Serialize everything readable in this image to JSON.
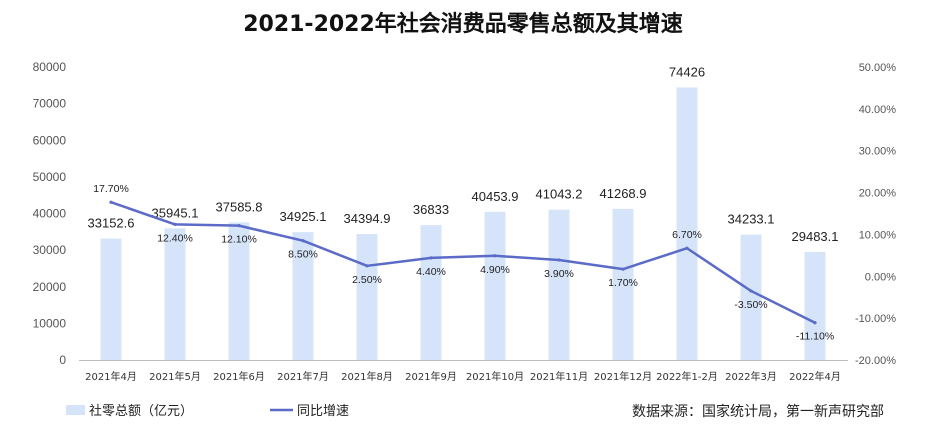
{
  "chart_data": {
    "type": "bar",
    "title": "2021-2022年社会消费品零售总额及其增速",
    "categories": [
      "2021年4月",
      "2021年5月",
      "2021年6月",
      "2021年7月",
      "2021年8月",
      "2021年9月",
      "2021年10月",
      "2021年11月",
      "2021年12月",
      "2022年1-2月",
      "2022年3月",
      "2022年4月"
    ],
    "series": [
      {
        "name": "社零总额（亿元）",
        "type": "bar",
        "axis": "left",
        "color": "#d6e4fa",
        "values": [
          33152.6,
          35945.1,
          37585.8,
          34925.1,
          34394.9,
          36833,
          40453.9,
          41043.2,
          41268.9,
          74426,
          34233.1,
          29483.1
        ],
        "labels": [
          "33152.6",
          "35945.1",
          "37585.8",
          "34925.1",
          "34394.9",
          "36833",
          "40453.9",
          "41043.2",
          "41268.9",
          "74426",
          "34233.1",
          "29483.1"
        ]
      },
      {
        "name": "同比增速",
        "type": "line",
        "axis": "right",
        "color": "#5b6bc7",
        "values": [
          17.7,
          12.4,
          12.1,
          8.5,
          2.5,
          4.4,
          4.9,
          3.9,
          1.7,
          6.7,
          -3.5,
          -11.1
        ],
        "labels": [
          "17.70%",
          "12.40%",
          "12.10%",
          "8.50%",
          "2.50%",
          "4.40%",
          "4.90%",
          "3.90%",
          "1.70%",
          "6.70%",
          "-3.50%",
          "-11.10%"
        ]
      }
    ],
    "y_left": {
      "min": 0,
      "max": 80000,
      "ticks": [
        "0",
        "10000",
        "20000",
        "30000",
        "40000",
        "50000",
        "60000",
        "70000",
        "80000"
      ]
    },
    "y_right": {
      "min": -20,
      "max": 50,
      "ticks": [
        "-20.00%",
        "-10.00%",
        "0.00%",
        "10.00%",
        "20.00%",
        "30.00%",
        "40.00%",
        "50.00%"
      ]
    },
    "grid": false,
    "legend_position": "bottom-left",
    "source": "数据来源：国家统计局，第一新声研究部"
  }
}
